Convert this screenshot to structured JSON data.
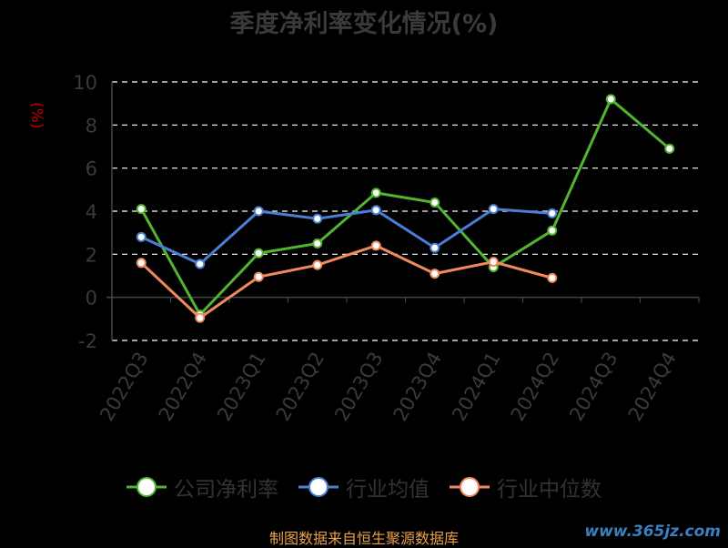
{
  "title": "季度净利率变化情况(%)",
  "unit": "(%)",
  "source": "制图数据来自恒生聚源数据库",
  "watermark": "www.365jz.com",
  "colors": {
    "background": "#000000",
    "grid": "#ffffff",
    "axis": "#444444",
    "tick": "#3a3a3a",
    "unit": "#c00000"
  },
  "chart_data": {
    "type": "line",
    "title": "季度净利率变化情况(%)",
    "ylabel": "(%)",
    "categories": [
      "2022Q3",
      "2022Q4",
      "2023Q1",
      "2023Q2",
      "2023Q3",
      "2023Q4",
      "2024Q1",
      "2024Q2",
      "2024Q3",
      "2024Q4"
    ],
    "ylim": [
      -2,
      10
    ],
    "yticks": [
      -2,
      0,
      2,
      4,
      6,
      8,
      10
    ],
    "grid": true,
    "legend_position": "bottom",
    "series": [
      {
        "name": "公司净利率",
        "color": "#52b52f",
        "values": [
          4.1,
          -0.8,
          2.05,
          2.5,
          4.85,
          4.4,
          1.4,
          3.1,
          9.2,
          6.9
        ]
      },
      {
        "name": "行业均值",
        "color": "#4a7fd4",
        "values": [
          2.8,
          1.55,
          4.0,
          3.65,
          4.05,
          2.3,
          4.1,
          3.9,
          null,
          null
        ]
      },
      {
        "name": "行业中位数",
        "color": "#f08a5d",
        "values": [
          1.6,
          -0.95,
          0.95,
          1.5,
          2.4,
          1.1,
          1.65,
          0.9,
          null,
          null
        ]
      }
    ]
  }
}
